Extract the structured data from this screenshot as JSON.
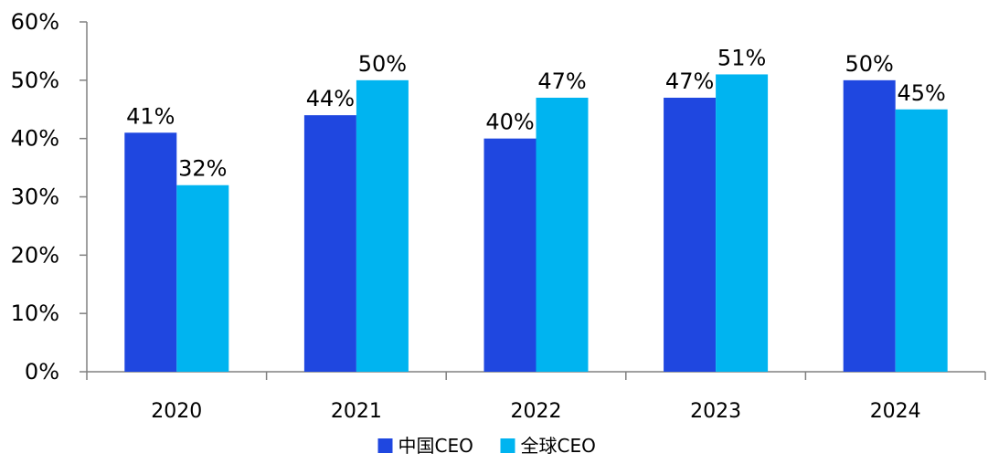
{
  "chart_data": {
    "type": "bar",
    "categories": [
      "2020",
      "2021",
      "2022",
      "2023",
      "2024"
    ],
    "series": [
      {
        "name": "中国CEO",
        "values": [
          41,
          44,
          40,
          47,
          50
        ],
        "labels": [
          "41%",
          "44%",
          "40%",
          "47%",
          "50%"
        ],
        "color": "#1f47e0"
      },
      {
        "name": "全球CEO",
        "values": [
          32,
          50,
          47,
          51,
          45
        ],
        "labels": [
          "32%",
          "50%",
          "47%",
          "51%",
          "45%"
        ],
        "color": "#00b4f0"
      }
    ],
    "ylim": [
      0,
      60
    ],
    "yticks": [
      0,
      10,
      20,
      30,
      40,
      50,
      60
    ],
    "ytick_labels": [
      "0%",
      "10%",
      "20%",
      "30%",
      "40%",
      "50%",
      "60%"
    ],
    "grid": false,
    "legend_position": "bottom-center"
  }
}
